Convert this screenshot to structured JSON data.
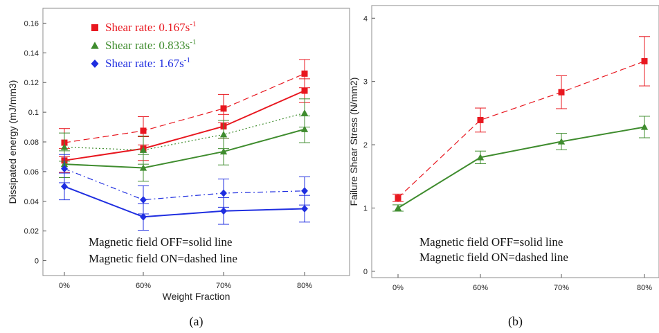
{
  "chart_data": [
    {
      "type": "line",
      "panel_label": "(a)",
      "categories": [
        "0%",
        "60%",
        "70%",
        "80%"
      ],
      "xlabel": "Weight Fraction",
      "ylabel": "Dissipated energy (mJ/mm3)",
      "ylim": [
        -0.01,
        0.17
      ],
      "yticks": [
        0,
        0.02,
        0.04,
        0.06,
        0.08,
        0.1,
        0.12,
        0.14,
        0.16
      ],
      "ytick_labels": [
        "0",
        "0.02",
        "0.04",
        "0.06",
        "0.08",
        "0.1",
        "0.12",
        "0.14",
        "0.16"
      ],
      "legend": [
        {
          "marker": "square",
          "color": "#e8171f",
          "text": "Shear rate: 0.167s",
          "sup": "-1"
        },
        {
          "marker": "triangle",
          "color": "#3f8c2e",
          "text": "Shear rate: 0.833s",
          "sup": "-1"
        },
        {
          "marker": "diamond",
          "color": "#1f2ee0",
          "text": "Shear rate: 1.67s",
          "sup": "-1"
        }
      ],
      "notes": [
        "Magnetic field OFF=solid line",
        "Magnetic field ON=dashed line"
      ],
      "series": [
        {
          "marker": "square",
          "color": "#e8171f",
          "style": "solid",
          "values": [
            0.0675,
            0.0755,
            0.0905,
            0.1145
          ],
          "errors": [
            0.008,
            0.008,
            0.008,
            0.008
          ]
        },
        {
          "marker": "square",
          "color": "#e8171f",
          "style": "dashed",
          "values": [
            0.0795,
            0.0875,
            0.1025,
            0.126
          ],
          "errors": [
            0.0095,
            0.0095,
            0.0095,
            0.0095
          ]
        },
        {
          "marker": "triangle",
          "color": "#3f8c2e",
          "style": "solid",
          "values": [
            0.065,
            0.0625,
            0.0735,
            0.0885
          ],
          "errors": [
            0.009,
            0.009,
            0.009,
            0.009
          ]
        },
        {
          "marker": "triangle",
          "color": "#3f8c2e",
          "style": "dotted",
          "values": [
            0.0765,
            0.0745,
            0.085,
            0.0995
          ],
          "errors": [
            0.0095,
            0.0095,
            0.0095,
            0.0095
          ]
        },
        {
          "marker": "diamond",
          "color": "#1f2ee0",
          "style": "solid",
          "values": [
            0.05,
            0.0295,
            0.0335,
            0.035
          ],
          "errors": [
            0.009,
            0.009,
            0.009,
            0.009
          ]
        },
        {
          "marker": "diamond",
          "color": "#1f2ee0",
          "style": "dashdot",
          "values": [
            0.062,
            0.041,
            0.0455,
            0.047
          ],
          "errors": [
            0.0095,
            0.0095,
            0.0095,
            0.0095
          ]
        }
      ]
    },
    {
      "type": "line",
      "panel_label": "(b)",
      "categories": [
        "0%",
        "60%",
        "70%",
        "80%"
      ],
      "xlabel": "",
      "ylabel": "Failure Shear Stress (N/mm2)",
      "ylim": [
        -0.1,
        4.2
      ],
      "yticks": [
        0,
        1,
        2,
        3,
        4
      ],
      "ytick_labels": [
        "0",
        "1",
        "2",
        "3",
        "4"
      ],
      "notes": [
        {
          "text": "Magnetic field OFF=solid line",
          "color": "#3f8c2e"
        },
        {
          "text": "Magnetic field ON=dashed line",
          "color": "#e8171f"
        }
      ],
      "series": [
        {
          "marker": "triangle",
          "color": "#3f8c2e",
          "style": "solid",
          "values": [
            1.0,
            1.8,
            2.05,
            2.28
          ],
          "errors": [
            0.05,
            0.1,
            0.13,
            0.17
          ]
        },
        {
          "marker": "square",
          "color": "#e8171f",
          "style": "dashed",
          "values": [
            1.16,
            2.39,
            2.83,
            3.32
          ],
          "errors": [
            0.06,
            0.19,
            0.26,
            0.39
          ]
        }
      ]
    }
  ]
}
